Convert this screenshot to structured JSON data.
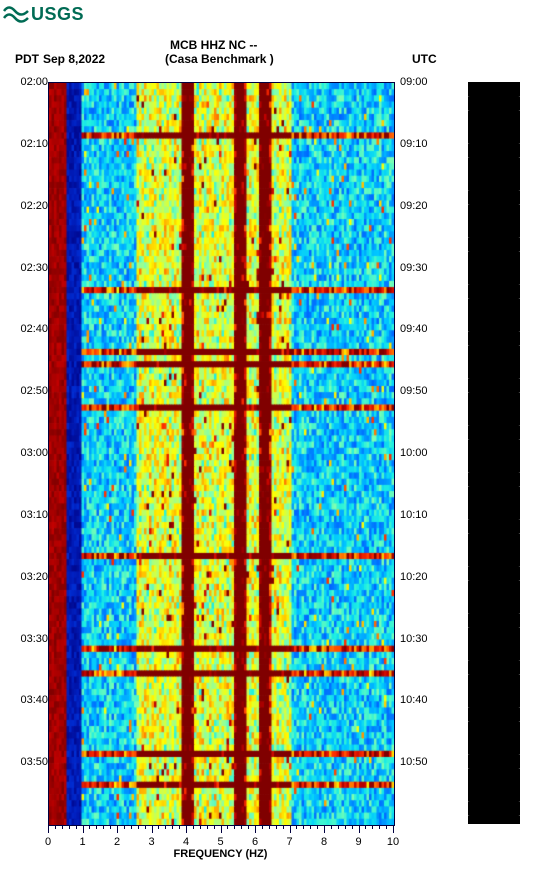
{
  "logo": {
    "text": "USGS",
    "color": "#006b54"
  },
  "header": {
    "station_code": "MCB HHZ NC --",
    "station_name": "(Casa Benchmark )",
    "left_tz": "PDT",
    "date": "Sep 8,2022",
    "right_tz": "UTC"
  },
  "spectrogram": {
    "type": "heatmap",
    "xlim": [
      0,
      10
    ],
    "x_major_ticks": [
      0,
      1,
      2,
      3,
      4,
      5,
      6,
      7,
      8,
      9,
      10
    ],
    "x_minor_step": 0.2,
    "xlabel": "FREQUENCY (HZ)",
    "time_rows": 120,
    "left_time_start_h": 2,
    "left_time_start_m": 0,
    "right_time_start_h": 9,
    "right_time_start_m": 0,
    "time_minutes_span": 120,
    "y_label_step_min": 10,
    "y_minor_step_min": 1,
    "colormap": [
      "#000080",
      "#0020c0",
      "#0050ff",
      "#0090ff",
      "#00c8ff",
      "#20f0e0",
      "#80ffb0",
      "#c0ff60",
      "#ffff00",
      "#ffc000",
      "#ff8000",
      "#ff3000",
      "#c00000",
      "#800000"
    ],
    "background_color": "#ffffff",
    "axis_color": "#000040",
    "label_fontsize": 11,
    "title_fontsize": 12,
    "strong_freq_bands_hz": [
      0.5,
      4.0,
      5.5,
      6.2
    ],
    "event_rows": [
      8,
      33,
      43,
      45,
      52,
      76,
      91,
      95,
      108,
      113
    ],
    "low_freq_break_hz": 0.9,
    "noise_seed": 20220908
  },
  "sidebar": {
    "bg_color": "#000000",
    "tick_color": "#ffffff"
  }
}
